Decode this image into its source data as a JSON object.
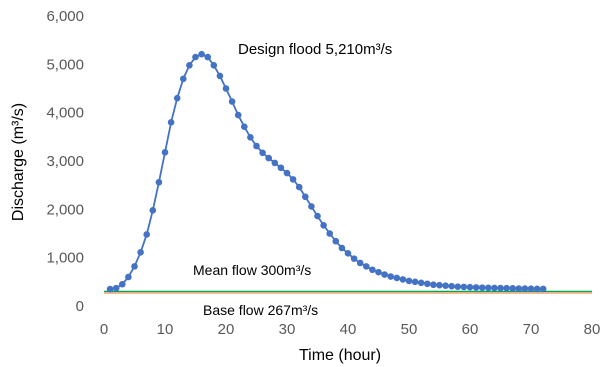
{
  "chart_data": {
    "type": "line",
    "xlabel": "Time (hour)",
    "ylabel": "Discharge (m³/s)",
    "xlim": [
      0,
      80
    ],
    "ylim": [
      0,
      6000
    ],
    "x_ticks": [
      "0",
      "10",
      "20",
      "30",
      "40",
      "50",
      "60",
      "70",
      "80"
    ],
    "y_ticks": [
      "0",
      "1,000",
      "2,000",
      "3,000",
      "4,000",
      "5,000",
      "6,000"
    ],
    "grid": false,
    "legend": "none",
    "series": [
      {
        "color": "#4472C4",
        "marker": "circle",
        "x": [
          1,
          2,
          3,
          4,
          5,
          6,
          7,
          8,
          9,
          10,
          11,
          12,
          13,
          14,
          15,
          16,
          17,
          18,
          19,
          20,
          21,
          22,
          23,
          24,
          25,
          26,
          27,
          28,
          29,
          30,
          31,
          32,
          33,
          34,
          35,
          36,
          37,
          38,
          39,
          40,
          41,
          42,
          43,
          44,
          45,
          46,
          47,
          48,
          49,
          50,
          51,
          52,
          53,
          54,
          55,
          56,
          57,
          58,
          59,
          60,
          61,
          62,
          63,
          64,
          65,
          66,
          67,
          68,
          69,
          70,
          71,
          72
        ],
        "y": [
          350,
          370,
          450,
          600,
          820,
          1110,
          1480,
          1980,
          2560,
          3180,
          3800,
          4300,
          4700,
          4980,
          5150,
          5210,
          5150,
          4980,
          4760,
          4500,
          4230,
          3950,
          3710,
          3490,
          3310,
          3170,
          3060,
          2960,
          2860,
          2750,
          2620,
          2460,
          2260,
          2060,
          1860,
          1670,
          1500,
          1340,
          1200,
          1090,
          980,
          890,
          820,
          750,
          700,
          650,
          610,
          580,
          550,
          520,
          500,
          480,
          460,
          440,
          430,
          420,
          410,
          400,
          395,
          390,
          385,
          380,
          377,
          374,
          371,
          368,
          365,
          362,
          360,
          358,
          356,
          354
        ]
      },
      {
        "color": "#00A651",
        "marker": "none",
        "x": [
          0,
          80
        ],
        "y": [
          300,
          300
        ]
      },
      {
        "color": "#F4B183",
        "marker": "none",
        "x": [
          0,
          80
        ],
        "y": [
          267,
          267
        ]
      }
    ],
    "annotations": [
      {
        "text": "Design flood 5,210m³/s"
      },
      {
        "text": "Mean flow 300m³/s"
      },
      {
        "text": "Base flow 267m³/s"
      }
    ]
  }
}
